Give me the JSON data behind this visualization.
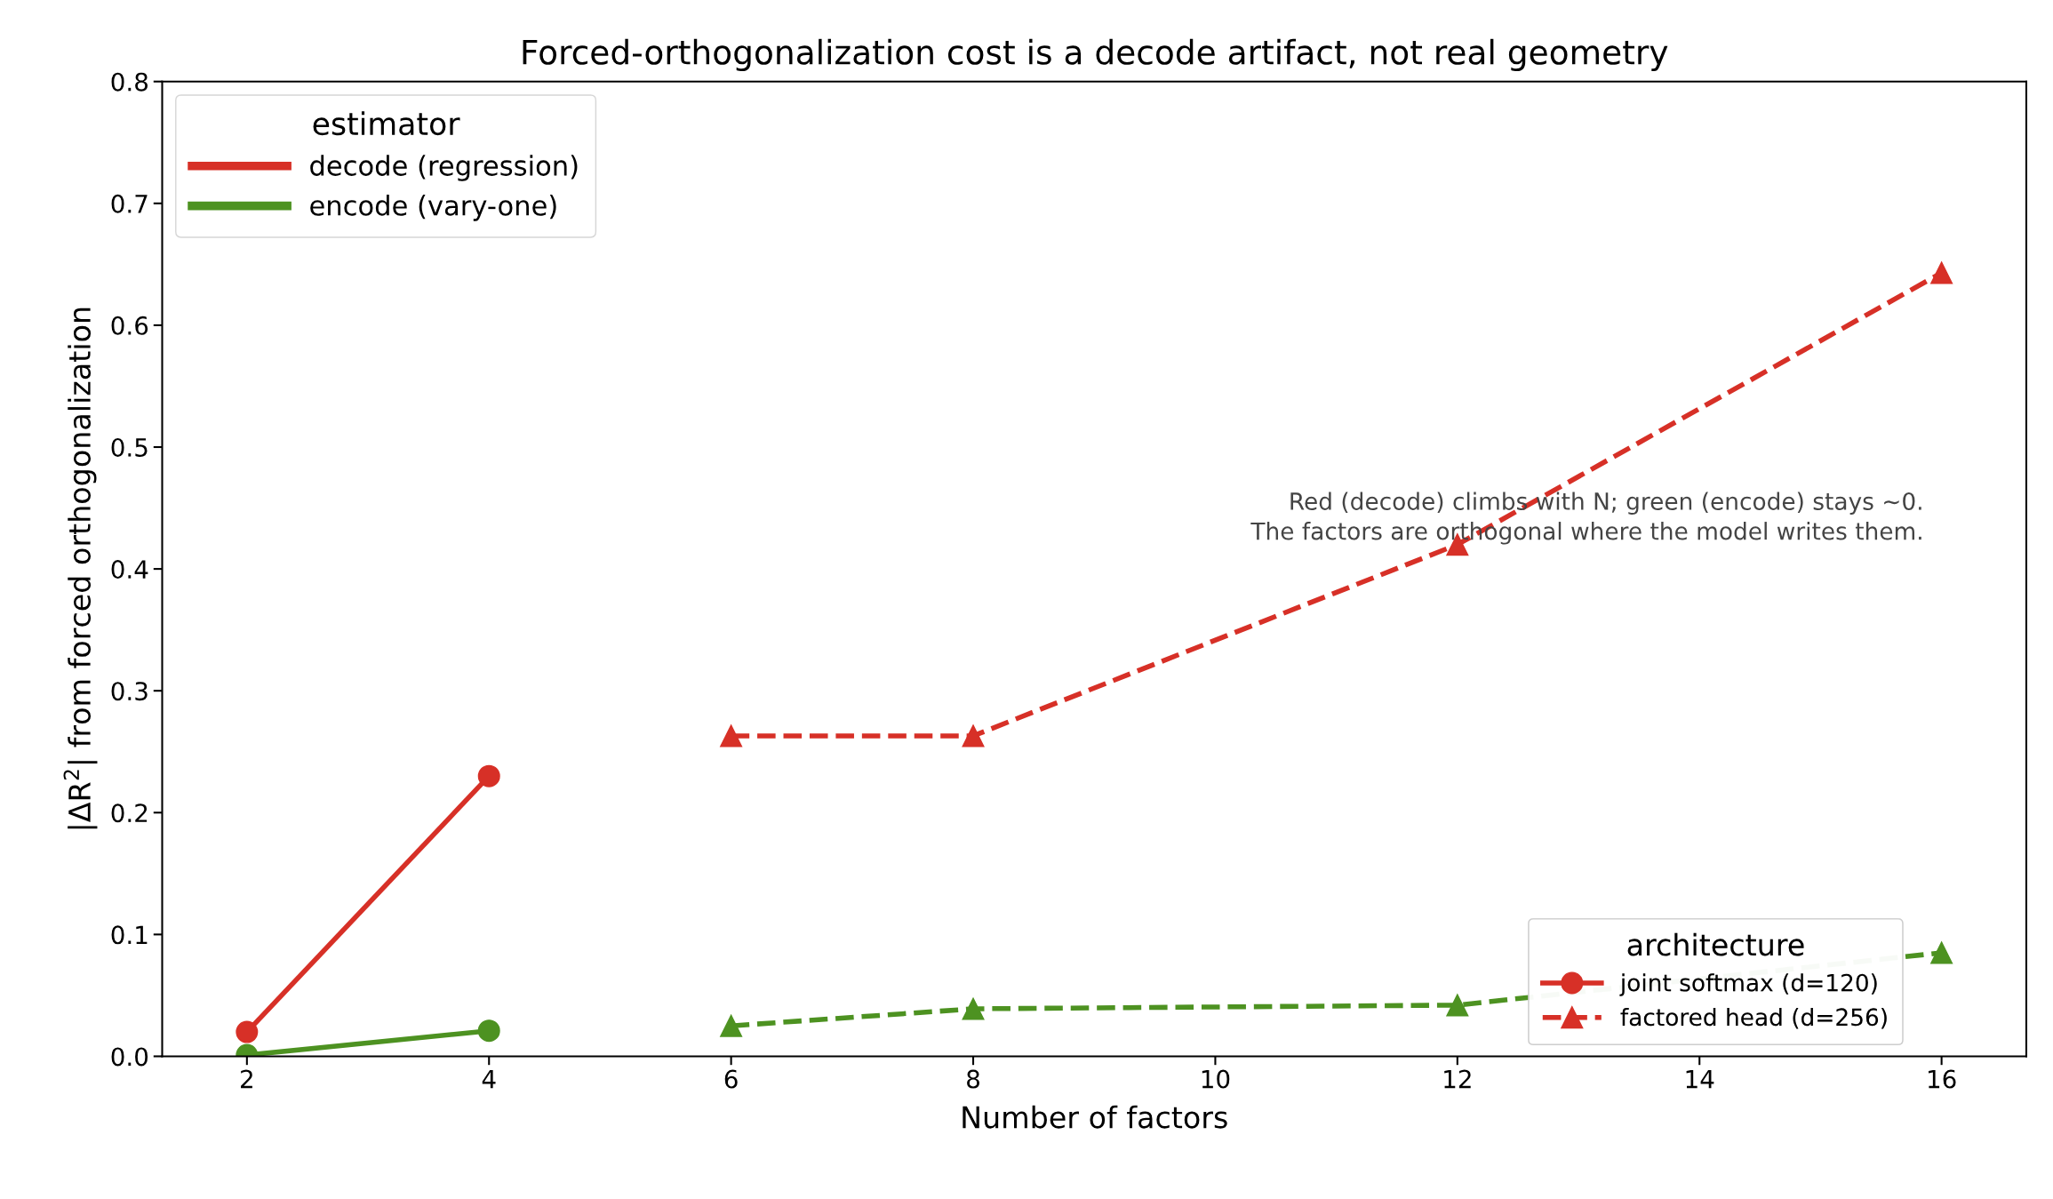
{
  "chart_data": {
    "type": "line",
    "title": "Forced-orthogonalization cost is a decode artifact, not real geometry",
    "xlabel": "Number of factors",
    "ylabel": "|ΔR$^{2}$| from forced orthogonalization",
    "xlim": [
      1.3,
      16.7
    ],
    "xticks": [
      2,
      4,
      6,
      8,
      10,
      12,
      14,
      16
    ],
    "ylim": [
      0,
      0.8
    ],
    "yticks": [
      {
        "value": 0,
        "label": "0.0"
      },
      0.1,
      0.2,
      0.3,
      0.4,
      0.5,
      0.6,
      0.7,
      0.8
    ],
    "series": [
      {
        "name": "decode (regression)",
        "color": "#d73027",
        "marker": "none",
        "line_style": "solid"
      },
      {
        "name": "encode (vary-one)",
        "color": "#4d9221",
        "marker": "none",
        "line_style": "solid"
      },
      {
        "name": "joint softmax (d=120)",
        "color": "#d73027",
        "marker": "circle",
        "line_style": "solid",
        "x": [
          2,
          4
        ],
        "values": [
          0.02,
          0.23
        ]
      },
      {
        "color": "#4d9221",
        "marker": "circle",
        "line_style": "solid",
        "x": [
          2,
          4
        ],
        "values": [
          0.001,
          0.021
        ]
      },
      {
        "name": "factored head (d=256)",
        "color": "#d73027",
        "marker": "triangle",
        "line_style": "dashed",
        "x": [
          6,
          8,
          12,
          16
        ],
        "values": [
          0.263,
          0.263,
          0.42,
          0.643
        ]
      },
      {
        "color": "#4d9221",
        "marker": "triangle",
        "line_style": "dashed",
        "x": [
          6,
          8,
          12,
          16
        ],
        "values": [
          0.025,
          0.039,
          0.042,
          0.085
        ]
      }
    ],
    "legend": [
      "top left",
      "bottom right"
    ],
    "legend_title": [
      "estimator",
      "architecture"
    ],
    "annotations": [
      "Red (decode) climbs with N; green (encode) stays ~0.\nThe factors are orthogonal where the model writes them."
    ]
  }
}
